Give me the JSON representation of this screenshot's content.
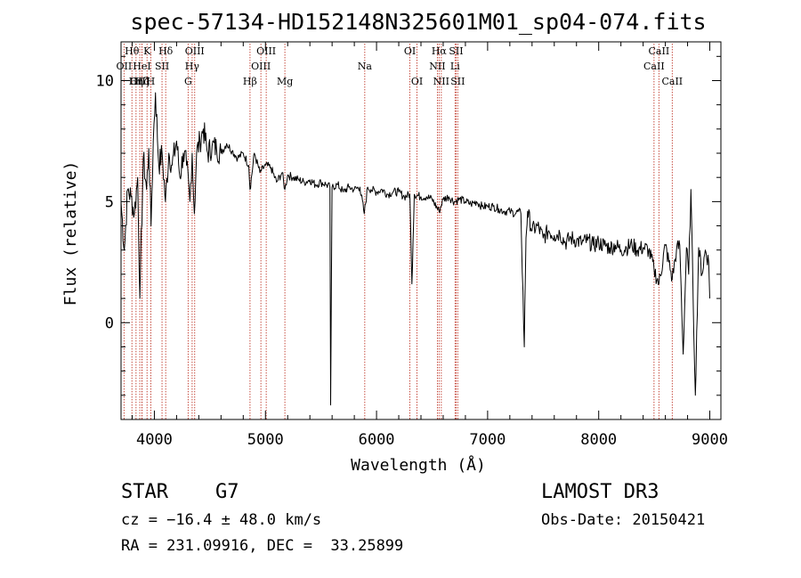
{
  "chart_data": {
    "type": "line",
    "title": "spec-57134-HD152148N325601M01_sp04-074.fits",
    "xlabel": "Wavelength (Å)",
    "ylabel": "Flux (relative)",
    "xlim": [
      3700,
      9100
    ],
    "ylim": [
      -4.0,
      11.6
    ],
    "xticks": [
      4000,
      5000,
      6000,
      7000,
      8000,
      9000
    ],
    "yticks": [
      0,
      5,
      10
    ],
    "series": [
      {
        "name": "flux",
        "x": [
          3700,
          3730,
          3760,
          3790,
          3820,
          3850,
          3870,
          3900,
          3930,
          3950,
          3970,
          3990,
          4010,
          4040,
          4070,
          4100,
          4130,
          4160,
          4200,
          4230,
          4260,
          4290,
          4320,
          4340,
          4360,
          4380,
          4410,
          4440,
          4480,
          4520,
          4560,
          4600,
          4650,
          4700,
          4750,
          4800,
          4850,
          4861,
          4900,
          4950,
          5000,
          5050,
          5100,
          5150,
          5175,
          5200,
          5250,
          5300,
          5350,
          5400,
          5450,
          5500,
          5550,
          5580,
          5587,
          5600,
          5650,
          5700,
          5750,
          5800,
          5850,
          5890,
          5920,
          5950,
          6000,
          6050,
          6100,
          6150,
          6200,
          6250,
          6300,
          6318,
          6340,
          6400,
          6450,
          6500,
          6563,
          6600,
          6650,
          6700,
          6750,
          6800,
          6850,
          6900,
          6950,
          7000,
          7050,
          7100,
          7150,
          7200,
          7250,
          7280,
          7300,
          7330,
          7345,
          7360,
          7400,
          7450,
          7500,
          7550,
          7600,
          7650,
          7700,
          7750,
          7800,
          7850,
          7900,
          7950,
          8000,
          8050,
          8100,
          8150,
          8200,
          8250,
          8300,
          8350,
          8400,
          8450,
          8498,
          8542,
          8600,
          8662,
          8700,
          8730,
          8760,
          8790,
          8810,
          8830,
          8850,
          8870,
          8900,
          8930,
          8960,
          8990,
          9000
        ],
        "values": [
          5.0,
          3.0,
          5.5,
          5.2,
          4.5,
          6.0,
          1.0,
          6.8,
          5.5,
          7.2,
          4.0,
          7.5,
          9.5,
          6.5,
          7.0,
          5.0,
          7.0,
          6.5,
          7.5,
          6.0,
          7.0,
          6.5,
          5.0,
          7.0,
          4.5,
          7.0,
          7.5,
          8.0,
          7.0,
          7.3,
          7.2,
          7.0,
          7.4,
          7.1,
          6.8,
          7.0,
          6.5,
          5.5,
          7.0,
          6.2,
          6.5,
          6.4,
          5.8,
          6.2,
          5.5,
          6.1,
          6.0,
          5.9,
          5.8,
          5.9,
          5.7,
          5.8,
          5.7,
          5.6,
          -3.4,
          5.6,
          5.7,
          5.4,
          5.6,
          5.5,
          5.6,
          4.5,
          5.6,
          5.5,
          5.4,
          5.5,
          5.3,
          5.4,
          5.4,
          5.2,
          5.3,
          1.6,
          5.3,
          5.2,
          5.2,
          5.1,
          4.6,
          5.1,
          5.2,
          5.0,
          5.1,
          5.0,
          4.9,
          5.0,
          4.8,
          4.8,
          4.8,
          4.7,
          4.6,
          4.6,
          4.5,
          4.6,
          4.5,
          -1.0,
          3.5,
          4.6,
          3.8,
          4.0,
          3.5,
          3.8,
          3.6,
          3.7,
          3.3,
          3.5,
          3.4,
          3.3,
          3.4,
          3.2,
          3.3,
          3.2,
          3.1,
          3.2,
          3.0,
          3.1,
          3.2,
          3.0,
          3.1,
          3.0,
          2.2,
          1.6,
          3.2,
          1.8,
          3.0,
          3.2,
          -1.3,
          3.1,
          2.0,
          5.5,
          1.0,
          -3.0,
          3.1,
          2.0,
          3.0,
          2.5,
          1.0
        ]
      }
    ],
    "lines": [
      {
        "label": "Hθ",
        "wave": 3798,
        "row": 1
      },
      {
        "label": "OII",
        "wave": 3727,
        "row": 2
      },
      {
        "label": "OIII",
        "wave": 3869,
        "row": 3
      },
      {
        "label": "Hζ",
        "wave": 3889,
        "row": 3
      },
      {
        "label": "Hη",
        "wave": 3835,
        "row": 3
      },
      {
        "label": "HeI",
        "wave": 3888,
        "row": 2
      },
      {
        "label": "K",
        "wave": 3934,
        "row": 1
      },
      {
        "label": "H",
        "wave": 3968,
        "row": 3
      },
      {
        "label": "SII",
        "wave": 4069,
        "row": 2
      },
      {
        "label": "Hδ",
        "wave": 4102,
        "row": 1
      },
      {
        "label": "OIII",
        "wave": 4363,
        "row": 1
      },
      {
        "label": "Hγ",
        "wave": 4340,
        "row": 2
      },
      {
        "label": "G",
        "wave": 4304,
        "row": 3
      },
      {
        "label": "Hβ",
        "wave": 4861,
        "row": 3
      },
      {
        "label": "OIII",
        "wave": 4959,
        "row": 2
      },
      {
        "label": "OIII",
        "wave": 5007,
        "row": 1
      },
      {
        "label": "Mg",
        "wave": 5175,
        "row": 3
      },
      {
        "label": "Na",
        "wave": 5894,
        "row": 2
      },
      {
        "label": "OI",
        "wave": 6300,
        "row": 1
      },
      {
        "label": "OI",
        "wave": 6364,
        "row": 3
      },
      {
        "label": "Hα",
        "wave": 6563,
        "row": 1
      },
      {
        "label": "NII",
        "wave": 6548,
        "row": 2
      },
      {
        "label": "NII",
        "wave": 6583,
        "row": 3
      },
      {
        "label": "SII",
        "wave": 6716,
        "row": 1
      },
      {
        "label": "Li",
        "wave": 6707,
        "row": 2
      },
      {
        "label": "SII",
        "wave": 6731,
        "row": 3
      },
      {
        "label": "CaII",
        "wave": 8498,
        "row": 2
      },
      {
        "label": "CaII",
        "wave": 8542,
        "row": 1
      },
      {
        "label": "CaII",
        "wave": 8662,
        "row": 3
      }
    ]
  },
  "footer": {
    "obj_class": "STAR",
    "subclass": "G7",
    "survey": "LAMOST DR3",
    "cz_line": "cz = −16.4 ± 48.0 km/s",
    "obs_date": "Obs-Date: 20150421",
    "radec": "RA = 231.09916, DEC =  33.25899"
  },
  "colors": {
    "spectrum": "#000000",
    "line_marker": "#c0392b",
    "axis": "#000000"
  }
}
